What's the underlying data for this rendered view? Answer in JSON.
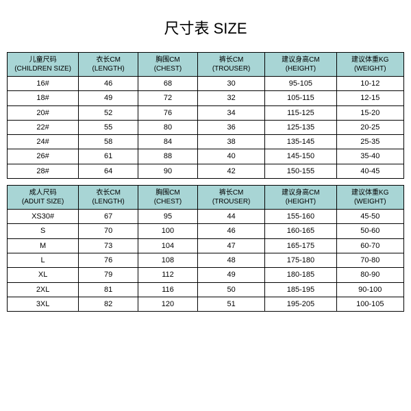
{
  "title": "尺寸表 SIZE",
  "header_bg": "#a8d5d5",
  "border_color": "#000000",
  "font_family": "Microsoft YaHei",
  "children": {
    "headers": [
      {
        "cn": "儿童尺码",
        "en": "(CHILDREN SIZE)"
      },
      {
        "cn": "衣长CM",
        "en": "(LENGTH)"
      },
      {
        "cn": "胸围CM",
        "en": "(CHEST)"
      },
      {
        "cn": "裤长CM",
        "en": "(TROUSER)"
      },
      {
        "cn": "建议身高CM",
        "en": "(HEIGHT)"
      },
      {
        "cn": "建议体重KG",
        "en": "(WEIGHT)"
      }
    ],
    "rows": [
      [
        "16#",
        "46",
        "68",
        "30",
        "95-105",
        "10-12"
      ],
      [
        "18#",
        "49",
        "72",
        "32",
        "105-115",
        "12-15"
      ],
      [
        "20#",
        "52",
        "76",
        "34",
        "115-125",
        "15-20"
      ],
      [
        "22#",
        "55",
        "80",
        "36",
        "125-135",
        "20-25"
      ],
      [
        "24#",
        "58",
        "84",
        "38",
        "135-145",
        "25-35"
      ],
      [
        "26#",
        "61",
        "88",
        "40",
        "145-150",
        "35-40"
      ],
      [
        "28#",
        "64",
        "90",
        "42",
        "150-155",
        "40-45"
      ]
    ]
  },
  "adult": {
    "headers": [
      {
        "cn": "成人尺码",
        "en": "(ADUIT SIZE)"
      },
      {
        "cn": "衣长CM",
        "en": "(LENGTH)"
      },
      {
        "cn": "胸围CM",
        "en": "(CHEST)"
      },
      {
        "cn": "裤长CM",
        "en": "(TROUSER)"
      },
      {
        "cn": "建议身高CM",
        "en": "(HEIGHT)"
      },
      {
        "cn": "建议体重KG",
        "en": "(WEIGHT)"
      }
    ],
    "rows": [
      [
        "XS30#",
        "67",
        "95",
        "44",
        "155-160",
        "45-50"
      ],
      [
        "S",
        "70",
        "100",
        "46",
        "160-165",
        "50-60"
      ],
      [
        "M",
        "73",
        "104",
        "47",
        "165-175",
        "60-70"
      ],
      [
        "L",
        "76",
        "108",
        "48",
        "175-180",
        "70-80"
      ],
      [
        "XL",
        "79",
        "112",
        "49",
        "180-185",
        "80-90"
      ],
      [
        "2XL",
        "81",
        "116",
        "50",
        "185-195",
        "90-100"
      ],
      [
        "3XL",
        "82",
        "120",
        "51",
        "195-205",
        "100-105"
      ]
    ]
  }
}
